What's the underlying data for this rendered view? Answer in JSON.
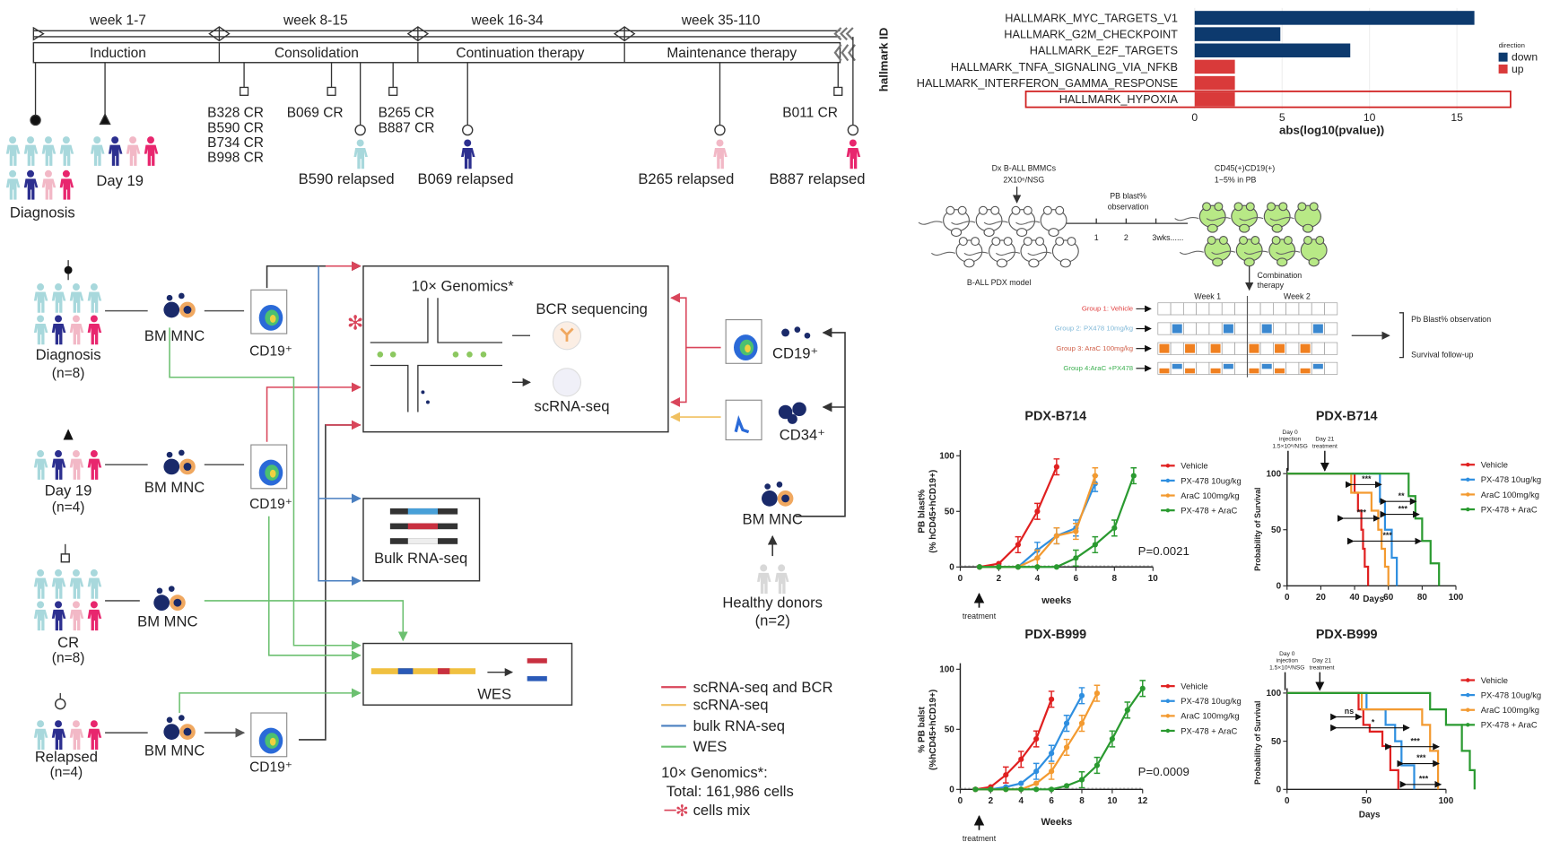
{
  "timeline": {
    "weeks": [
      "week 1-7",
      "week 8-15",
      "week 16-34",
      "week 35-110"
    ],
    "phases": [
      "Induction",
      "Consolidation",
      "Continuation therapy",
      "Maintenance therapy"
    ],
    "cr_labels": [
      "B328 CR",
      "B590 CR",
      "B734 CR",
      "B998 CR",
      "B069 CR",
      "B265 CR",
      "B887 CR",
      "B011 CR"
    ],
    "relapses": [
      "B590 relapsed",
      "B069 relapsed",
      "B265 relapsed",
      "B887 relapsed"
    ],
    "diagnosis": "Diagnosis",
    "day19": "Day 19"
  },
  "workflow": {
    "groups": [
      {
        "label": "Diagnosis",
        "n": "(n=8)"
      },
      {
        "label": "Day 19",
        "n": "(n=4)"
      },
      {
        "label": "CR",
        "n": "(n=8)"
      },
      {
        "label": "Relapsed",
        "n": "(n=4)"
      }
    ],
    "bm_mnc": "BM MNC",
    "cd19": "CD19⁺",
    "cd34": "CD34⁺",
    "genomics_title": "10× Genomics*",
    "bcr": "BCR sequencing",
    "scrna": "scRNA-seq",
    "bulk": "Bulk RNA-seq",
    "wes": "WES",
    "healthy": "Healthy donors",
    "healthy_n": "(n=2)",
    "legend": [
      {
        "label": "scRNA-seq and BCR",
        "color": "#d9455a"
      },
      {
        "label": "scRNA-seq",
        "color": "#f0c060"
      },
      {
        "label": "bulk RNA-seq",
        "color": "#4a7fc0"
      },
      {
        "label": "WES",
        "color": "#6cc070"
      }
    ],
    "genomics_note": "10× Genomics*:",
    "total": "Total: 161,986 cells",
    "cells_mix": "cells mix"
  },
  "pdx_schema": {
    "inject_1": "Dx B-ALL BMMCs",
    "inject_2": "2X10⁶/NSG",
    "model": "B-ALL PDX model",
    "obs_1": "PB blast%",
    "obs_2": "observation",
    "ticks": [
      "1",
      "2",
      "3wks......"
    ],
    "cd_1": "CD45(+)CD19(+)",
    "cd_2": "1~5%  in PB",
    "combo_1": "Combination",
    "combo_2": "therapy",
    "week1": "Week 1",
    "week2": "Week 2",
    "groups": [
      {
        "label": "Group 1: Vehicle",
        "color": "#e04040"
      },
      {
        "label": "Group 2:  PX478  10mg/kg",
        "color": "#7fb8d8"
      },
      {
        "label": "Group 3: AraC 100mg/kg",
        "color": "#d0604a"
      },
      {
        "label": "Group 4:AraC +PX478",
        "color": "#3cb050"
      }
    ],
    "outcome_1": "Pb Blast% observation",
    "outcome_2": "Survival follow-up"
  },
  "chart_data": [
    {
      "type": "bar",
      "orientation": "horizontal",
      "categories": [
        "HALLMARK_MYC_TARGETS_V1",
        "HALLMARK_G2M_CHECKPOINT",
        "HALLMARK_E2F_TARGETS",
        "HALLMARK_TNFA_SIGNALING_VIA_NFKB",
        "HALLMARK_INTERFERON_GAMMA_RESPONSE",
        "HALLMARK_HYPOXIA"
      ],
      "values": [
        16,
        4.9,
        8.9,
        2.3,
        2.3,
        2.3
      ],
      "direction": [
        "down",
        "down",
        "down",
        "up",
        "up",
        "up"
      ],
      "colors": {
        "down": "#0d3a6e",
        "up": "#d93a3a"
      },
      "xlabel": "abs(log10(pvalue))",
      "ylabel": "hallmark ID",
      "xticks": [
        0,
        5,
        10,
        15
      ],
      "xlim": [
        0,
        18
      ],
      "legend_title": "direction",
      "legend": [
        "down",
        "up"
      ],
      "highlighted": "HALLMARK_HYPOXIA"
    },
    {
      "type": "line",
      "title": "PDX-B714",
      "xlabel": "weeks",
      "ylabel": [
        "PB blast%",
        "(% hCD45+hCD19+)"
      ],
      "xticks": [
        0,
        2,
        4,
        6,
        8,
        10
      ],
      "yticks": [
        0,
        50,
        100
      ],
      "annotation": "treatment",
      "pvalue": "P=0.0021",
      "series": [
        {
          "name": "Vehicle",
          "color": "#e02020",
          "x": [
            1,
            2,
            3,
            4,
            5
          ],
          "y": [
            0,
            3,
            20,
            50,
            90
          ]
        },
        {
          "name": "PX-478 10ug/kg",
          "color": "#2f8fe0",
          "x": [
            1,
            2,
            3,
            4,
            5,
            6,
            7
          ],
          "y": [
            0,
            0,
            0,
            15,
            28,
            35,
            75
          ]
        },
        {
          "name": "AraC 100mg/kg",
          "color": "#f39a30",
          "x": [
            1,
            2,
            3,
            4,
            5,
            6,
            7
          ],
          "y": [
            0,
            0,
            0,
            8,
            28,
            32,
            82
          ]
        },
        {
          "name": "PX-478 + AraC",
          "color": "#2a9a30",
          "x": [
            1,
            2,
            3,
            4,
            5,
            6,
            7,
            8,
            9
          ],
          "y": [
            0,
            0,
            0,
            0,
            0,
            8,
            20,
            35,
            82
          ]
        }
      ]
    },
    {
      "type": "line",
      "title": "PDX-B999",
      "xlabel": "Weeks",
      "ylabel": [
        "% PB balst",
        "(%hCD45+hCD19+)"
      ],
      "xticks": [
        0,
        2,
        4,
        6,
        8,
        10,
        12
      ],
      "yticks": [
        0,
        50,
        100
      ],
      "annotation": "treatment",
      "pvalue": "P=0.0009",
      "series": [
        {
          "name": "Vehicle",
          "color": "#e02020",
          "x": [
            1,
            2,
            3,
            4,
            5,
            6
          ],
          "y": [
            0,
            2,
            12,
            25,
            42,
            75
          ]
        },
        {
          "name": "PX-478 10ug/kg",
          "color": "#2f8fe0",
          "x": [
            1,
            2,
            3,
            4,
            5,
            6,
            7,
            8
          ],
          "y": [
            0,
            0,
            2,
            5,
            15,
            30,
            55,
            78
          ]
        },
        {
          "name": "AraC 100mg/kg",
          "color": "#f39a30",
          "x": [
            1,
            2,
            3,
            4,
            5,
            6,
            7,
            8,
            9
          ],
          "y": [
            0,
            0,
            0,
            0,
            5,
            15,
            35,
            55,
            80
          ]
        },
        {
          "name": "PX-478 + AraC",
          "color": "#2a9a30",
          "x": [
            1,
            2,
            3,
            4,
            5,
            6,
            7,
            8,
            9,
            10,
            11,
            12
          ],
          "y": [
            0,
            0,
            0,
            0,
            0,
            0,
            3,
            8,
            20,
            42,
            66,
            84
          ]
        }
      ]
    },
    {
      "type": "line",
      "subtype": "survival-step",
      "title": "PDX-B714",
      "xlabel": "Days",
      "ylabel": "Probability of Survival",
      "xticks": [
        0,
        20,
        40,
        60,
        80,
        100
      ],
      "yticks": [
        0,
        50,
        100
      ],
      "injection": [
        "Day 0",
        "injection",
        "1.5×10⁶/NSG"
      ],
      "treatment": [
        "Day 21",
        "treatment"
      ],
      "significance": [
        "***",
        "**",
        "***",
        "***",
        "***"
      ],
      "series": [
        {
          "name": "Vehicle",
          "color": "#e02020",
          "x": [
            0,
            40,
            42,
            44,
            45,
            46,
            48
          ],
          "y": [
            100,
            83,
            67,
            50,
            33,
            17,
            0
          ]
        },
        {
          "name": "PX-478 10ug/kg",
          "color": "#2f8fe0",
          "x": [
            0,
            55,
            58,
            62,
            65
          ],
          "y": [
            100,
            75,
            50,
            25,
            0
          ]
        },
        {
          "name": "AraC 100mg/kg",
          "color": "#f39a30",
          "x": [
            0,
            38,
            50,
            54,
            56,
            58,
            60
          ],
          "y": [
            100,
            83,
            67,
            50,
            33,
            17,
            0
          ]
        },
        {
          "name": "PX-478 + AraC",
          "color": "#2a9a30",
          "x": [
            0,
            72,
            76,
            80,
            85,
            90
          ],
          "y": [
            100,
            80,
            60,
            40,
            20,
            0
          ]
        }
      ]
    },
    {
      "type": "line",
      "subtype": "survival-step",
      "title": "PDX-B999",
      "xlabel": "Days",
      "ylabel": "Probability of Survival",
      "xticks": [
        0,
        50,
        100
      ],
      "yticks": [
        0,
        50,
        100
      ],
      "injection": [
        "Day 0",
        "injection",
        "1.5×10⁶/NSG"
      ],
      "treatment": [
        "Day 21",
        "treatment"
      ],
      "significance": [
        "ns",
        "*",
        "***",
        "***",
        "***"
      ],
      "series": [
        {
          "name": "Vehicle",
          "color": "#e02020",
          "x": [
            0,
            45,
            48,
            52,
            60,
            65,
            70
          ],
          "y": [
            100,
            83,
            67,
            60,
            45,
            20,
            0
          ]
        },
        {
          "name": "PX-478 10ug/kg",
          "color": "#2f8fe0",
          "x": [
            0,
            50,
            62,
            68,
            72,
            80
          ],
          "y": [
            100,
            83,
            67,
            50,
            25,
            0
          ]
        },
        {
          "name": "AraC 100mg/kg",
          "color": "#f39a30",
          "x": [
            0,
            47,
            60,
            85,
            90,
            95
          ],
          "y": [
            100,
            83,
            83,
            67,
            40,
            0
          ]
        },
        {
          "name": "PX-478 + AraC",
          "color": "#2a9a30",
          "x": [
            0,
            90,
            100,
            110,
            115,
            118
          ],
          "y": [
            100,
            83,
            67,
            40,
            20,
            0
          ]
        }
      ]
    }
  ]
}
